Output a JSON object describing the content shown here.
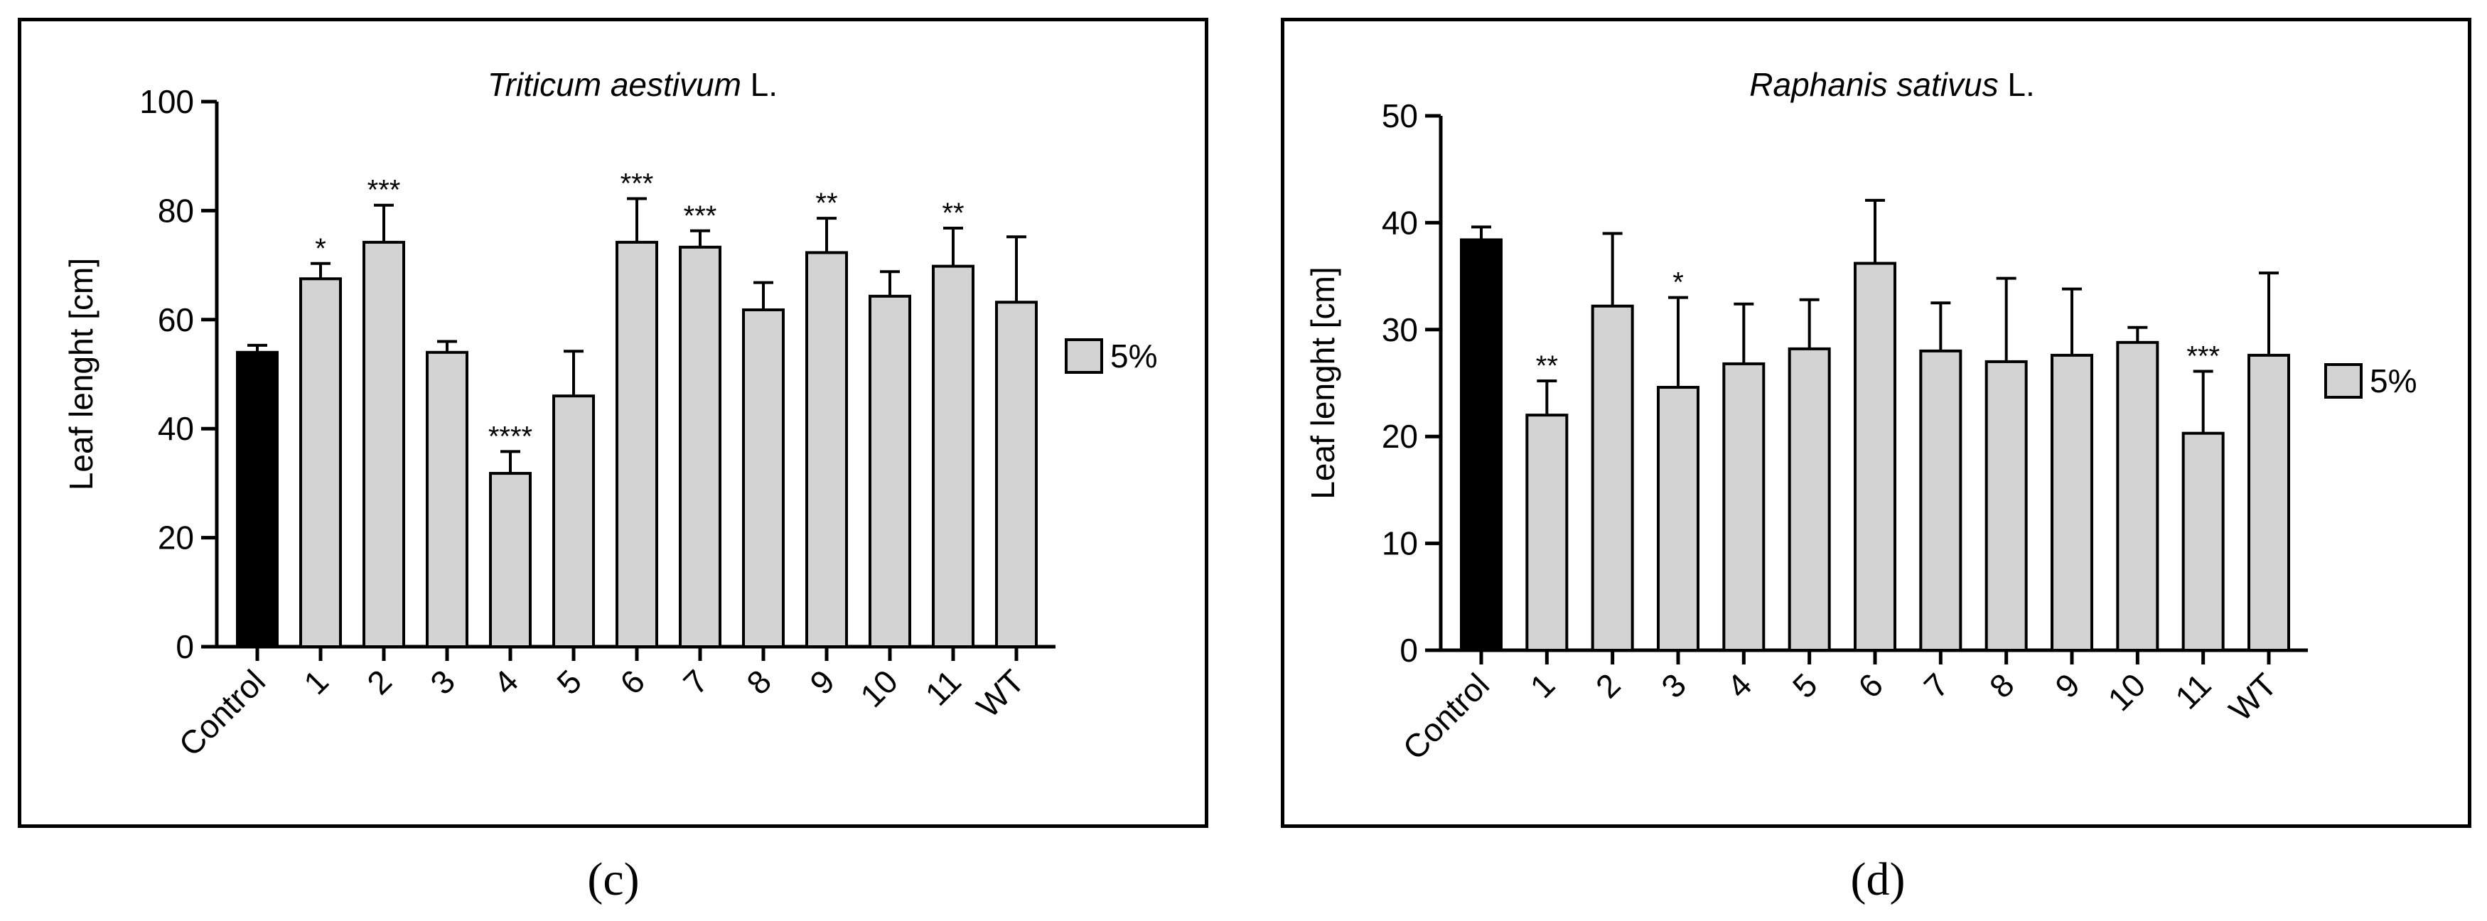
{
  "chart_data": [
    {
      "type": "bar",
      "panel_label": "(c)",
      "title_italic": "Triticum aestivum",
      "title_suffix": " L.",
      "xlabel": "",
      "ylabel": "Leaf lenght [cm]",
      "ylim": [
        0,
        100
      ],
      "yticks": [
        0,
        20,
        40,
        60,
        80,
        100
      ],
      "categories": [
        "Control",
        "1",
        "2",
        "3",
        "4",
        "5",
        "6",
        "7",
        "8",
        "9",
        "10",
        "11",
        "WT"
      ],
      "values": [
        54,
        67.5,
        74.2,
        54,
        31.8,
        46,
        74.2,
        73.3,
        61.8,
        72.3,
        64.3,
        69.8,
        63.2
      ],
      "errors": [
        1.3,
        2.8,
        6.8,
        2,
        4,
        8.2,
        8,
        3,
        5,
        6.3,
        4.5,
        7,
        12
      ],
      "significance": [
        "",
        "*",
        "***",
        "",
        "****",
        "",
        "***",
        "***",
        "",
        "**",
        "",
        "**",
        ""
      ],
      "bar_colors": [
        "#000000",
        "#d3d3d3",
        "#d3d3d3",
        "#d3d3d3",
        "#d3d3d3",
        "#d3d3d3",
        "#d3d3d3",
        "#d3d3d3",
        "#d3d3d3",
        "#d3d3d3",
        "#d3d3d3",
        "#d3d3d3",
        "#d3d3d3"
      ],
      "legend": [
        {
          "label": "5%",
          "color": "#d3d3d3"
        }
      ],
      "legend_position": "right"
    },
    {
      "type": "bar",
      "panel_label": "(d)",
      "title_italic": "Raphanis sativus",
      "title_suffix": " L.",
      "xlabel": "",
      "ylabel": "Leaf lenght [cm]",
      "ylim": [
        0,
        50
      ],
      "yticks": [
        0,
        10,
        20,
        30,
        40,
        50
      ],
      "categories": [
        "Control",
        "1",
        "2",
        "3",
        "4",
        "5",
        "6",
        "7",
        "8",
        "9",
        "10",
        "11",
        "WT"
      ],
      "values": [
        38.4,
        22,
        32.2,
        24.6,
        26.8,
        28.2,
        36.2,
        28,
        27,
        27.6,
        28.8,
        20.3,
        27.6
      ],
      "errors": [
        1.2,
        3.2,
        6.8,
        8.4,
        5.6,
        4.6,
        5.9,
        4.5,
        7.8,
        6.2,
        1.4,
        5.8,
        7.7
      ],
      "significance": [
        "",
        "**",
        "",
        "*",
        "",
        "",
        "",
        "",
        "",
        "",
        "",
        "***",
        ""
      ],
      "bar_colors": [
        "#000000",
        "#d3d3d3",
        "#d3d3d3",
        "#d3d3d3",
        "#d3d3d3",
        "#d3d3d3",
        "#d3d3d3",
        "#d3d3d3",
        "#d3d3d3",
        "#d3d3d3",
        "#d3d3d3",
        "#d3d3d3",
        "#d3d3d3"
      ],
      "legend": [
        {
          "label": "5%",
          "color": "#d3d3d3"
        }
      ],
      "legend_position": "right"
    }
  ]
}
